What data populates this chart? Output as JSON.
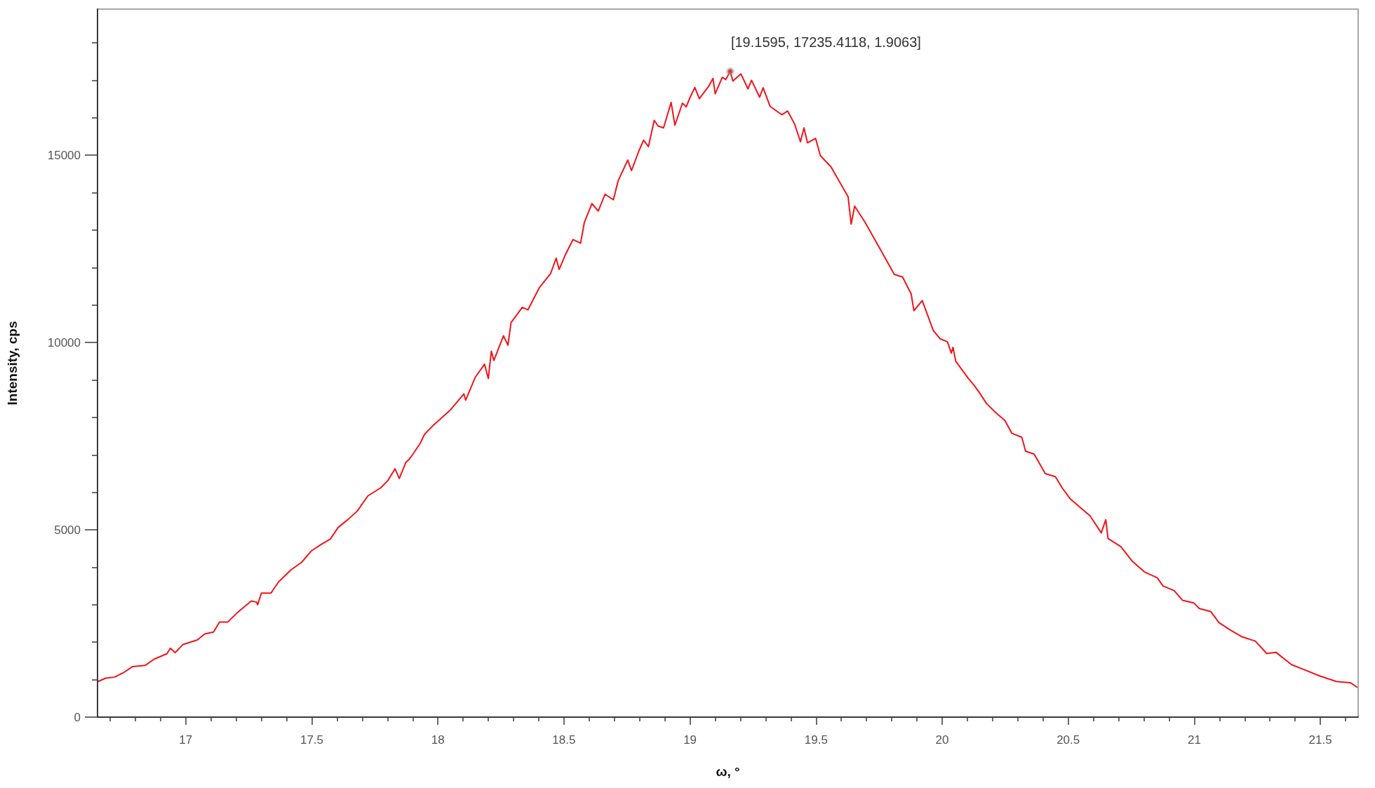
{
  "chart_data": {
    "type": "line",
    "xlabel": "ω, °",
    "ylabel": "Intensity, cps",
    "color": "#f2141b",
    "marker": "none",
    "line_style": "solid",
    "annotations": [
      {
        "text": "[19.1595, 17235.4118, 1.9063]",
        "x": 19.1595,
        "y": 17235.4118
      }
    ],
    "xlim": [
      16.65,
      21.65
    ],
    "ylim": [
      0,
      18900
    ],
    "xticks": [
      {
        "value": 16.7,
        "label": null
      },
      {
        "value": 16.8,
        "label": null
      },
      {
        "value": 16.9,
        "label": null
      },
      17,
      {
        "value": 17.1,
        "label": null
      },
      {
        "value": 17.2,
        "label": null
      },
      {
        "value": 17.3,
        "label": null
      },
      {
        "value": 17.4,
        "label": null
      },
      17.5,
      {
        "value": 17.6,
        "label": null
      },
      {
        "value": 17.7,
        "label": null
      },
      {
        "value": 17.8,
        "label": null
      },
      {
        "value": 17.9,
        "label": null
      },
      18,
      {
        "value": 18.1,
        "label": null
      },
      {
        "value": 18.2,
        "label": null
      },
      {
        "value": 18.3,
        "label": null
      },
      {
        "value": 18.4,
        "label": null
      },
      18.5,
      {
        "value": 18.6,
        "label": null
      },
      {
        "value": 18.7,
        "label": null
      },
      {
        "value": 18.8,
        "label": null
      },
      {
        "value": 18.9,
        "label": null
      },
      19,
      {
        "value": 19.1,
        "label": null
      },
      {
        "value": 19.2,
        "label": null
      },
      {
        "value": 19.3,
        "label": null
      },
      {
        "value": 19.4,
        "label": null
      },
      19.5,
      {
        "value": 19.6,
        "label": null
      },
      {
        "value": 19.7,
        "label": null
      },
      {
        "value": 19.8,
        "label": null
      },
      {
        "value": 19.9,
        "label": null
      },
      20,
      {
        "value": 20.1,
        "label": null
      },
      {
        "value": 20.2,
        "label": null
      },
      {
        "value": 20.3,
        "label": null
      },
      {
        "value": 20.4,
        "label": null
      },
      20.5,
      {
        "value": 20.6,
        "label": null
      },
      {
        "value": 20.7,
        "label": null
      },
      {
        "value": 20.8,
        "label": null
      },
      {
        "value": 20.9,
        "label": null
      },
      21,
      {
        "value": 21.1,
        "label": null
      },
      {
        "value": 21.2,
        "label": null
      },
      {
        "value": 21.3,
        "label": null
      },
      {
        "value": 21.4,
        "label": null
      },
      21.5,
      {
        "value": 21.6,
        "label": null
      }
    ],
    "yticks": [
      0,
      {
        "value": 1000,
        "label": null
      },
      {
        "value": 2000,
        "label": null
      },
      {
        "value": 3000,
        "label": null
      },
      {
        "value": 4000,
        "label": null
      },
      5000,
      {
        "value": 6000,
        "label": null
      },
      {
        "value": 7000,
        "label": null
      },
      {
        "value": 8000,
        "label": null
      },
      {
        "value": 9000,
        "label": null
      },
      10000,
      {
        "value": 11000,
        "label": null
      },
      {
        "value": 12000,
        "label": null
      },
      {
        "value": 13000,
        "label": null
      },
      {
        "value": 14000,
        "label": null
      },
      15000,
      {
        "value": 16000,
        "label": null
      },
      {
        "value": 17000,
        "label": null
      },
      {
        "value": 18000,
        "label": null
      }
    ],
    "x": [
      16.652,
      16.682,
      16.718,
      16.754,
      16.789,
      16.839,
      16.875,
      16.925,
      16.939,
      16.958,
      16.989,
      17.046,
      17.075,
      17.11,
      17.134,
      17.167,
      17.203,
      17.26,
      17.281,
      17.285,
      17.3,
      17.338,
      17.367,
      17.417,
      17.459,
      17.499,
      17.537,
      17.573,
      17.604,
      17.644,
      17.68,
      17.723,
      17.773,
      17.801,
      17.83,
      17.847,
      17.873,
      17.887,
      17.901,
      17.93,
      17.947,
      17.98,
      18.051,
      18.103,
      18.11,
      18.148,
      18.185,
      18.2,
      18.212,
      18.222,
      18.26,
      18.278,
      18.29,
      18.335,
      18.357,
      18.402,
      18.447,
      18.469,
      18.481,
      18.506,
      18.536,
      18.566,
      18.581,
      18.611,
      18.636,
      18.663,
      18.696,
      18.715,
      18.753,
      18.768,
      18.798,
      18.816,
      18.835,
      18.858,
      18.873,
      18.895,
      18.925,
      18.94,
      18.97,
      18.985,
      19.0,
      19.019,
      19.037,
      19.074,
      19.091,
      19.1,
      19.128,
      19.142,
      19.1595,
      19.17,
      19.202,
      19.23,
      19.244,
      19.276,
      19.29,
      19.318,
      19.364,
      19.387,
      19.415,
      19.438,
      19.452,
      19.466,
      19.498,
      19.517,
      19.559,
      19.627,
      19.639,
      19.653,
      19.695,
      19.762,
      19.81,
      19.843,
      19.877,
      19.888,
      19.921,
      19.965,
      19.992,
      20.021,
      20.036,
      20.043,
      20.054,
      20.103,
      20.125,
      20.147,
      20.176,
      20.214,
      20.249,
      20.276,
      20.316,
      20.331,
      20.365,
      20.409,
      20.449,
      20.476,
      20.509,
      20.547,
      20.587,
      20.631,
      20.649,
      20.658,
      20.709,
      20.753,
      20.804,
      20.853,
      20.876,
      20.92,
      20.953,
      20.998,
      21.02,
      21.065,
      21.098,
      21.142,
      21.187,
      21.242,
      21.287,
      21.324,
      21.386,
      21.431,
      21.497,
      21.564,
      21.619,
      21.645
    ],
    "values": [
      950,
      1040,
      1070,
      1190,
      1350,
      1380,
      1550,
      1690,
      1840,
      1720,
      1940,
      2060,
      2220,
      2270,
      2540,
      2540,
      2780,
      3100,
      3070,
      3000,
      3310,
      3310,
      3600,
      3930,
      4130,
      4440,
      4610,
      4750,
      5060,
      5280,
      5500,
      5910,
      6120,
      6310,
      6630,
      6370,
      6800,
      6890,
      7020,
      7310,
      7550,
      7780,
      8210,
      8630,
      8460,
      9070,
      9420,
      9040,
      9770,
      9520,
      10180,
      9930,
      10530,
      10940,
      10870,
      11460,
      11840,
      12250,
      11950,
      12350,
      12750,
      12650,
      13210,
      13710,
      13510,
      13960,
      13810,
      14320,
      14870,
      14590,
      15130,
      15400,
      15230,
      15930,
      15780,
      15730,
      16410,
      15800,
      16390,
      16290,
      16540,
      16810,
      16510,
      16840,
      17050,
      16640,
      17080,
      17020,
      17240,
      16980,
      17170,
      16770,
      17000,
      16550,
      16800,
      16300,
      16080,
      16180,
      15830,
      15360,
      15730,
      15330,
      15450,
      14990,
      14690,
      13890,
      13160,
      13640,
      13200,
      12400,
      11820,
      11750,
      11300,
      10850,
      11120,
      10320,
      10100,
      10020,
      9720,
      9870,
      9500,
      9050,
      8870,
      8670,
      8370,
      8120,
      7920,
      7580,
      7470,
      7100,
      7020,
      6500,
      6420,
      6120,
      5820,
      5600,
      5370,
      4920,
      5270,
      4770,
      4550,
      4170,
      3870,
      3720,
      3500,
      3380,
      3120,
      3050,
      2900,
      2820,
      2520,
      2330,
      2150,
      2030,
      1700,
      1730,
      1400,
      1280,
      1100,
      950,
      920,
      800
    ]
  }
}
